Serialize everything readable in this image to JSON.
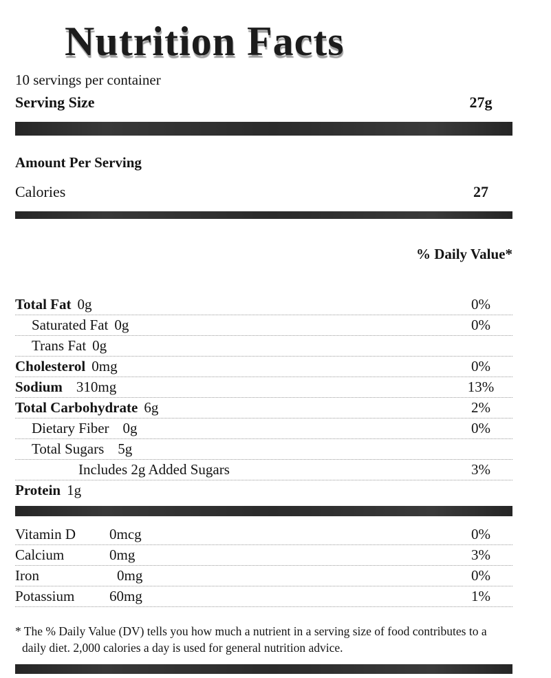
{
  "label": {
    "title": "Nutrition Facts",
    "servings_per_container": "10 servings per container",
    "serving_size": {
      "label": "Serving Size",
      "value": "27g"
    },
    "amount_per_serving": "Amount Per Serving",
    "calories": {
      "label": "Calories",
      "value": "27"
    },
    "daily_value_header": "% Daily Value*",
    "nutrients": [
      {
        "name": "Total Fat",
        "amount": "0g",
        "dv": "0%"
      },
      {
        "name": "Saturated Fat",
        "amount": "0g",
        "dv": "0%"
      },
      {
        "name": "Trans Fat",
        "amount": "0g",
        "dv": ""
      },
      {
        "name": "Cholesterol",
        "amount": "0mg",
        "dv": "0%"
      },
      {
        "name": "Sodium",
        "amount": "310mg",
        "dv": "13%"
      },
      {
        "name": "Total Carbohydrate",
        "amount": "6g",
        "dv": "2%"
      },
      {
        "name": "Dietary Fiber",
        "amount": "0g",
        "dv": "0%"
      },
      {
        "name": "Total Sugars",
        "amount": "5g",
        "dv": ""
      },
      {
        "name": "Includes 2g Added Sugars",
        "amount": "",
        "dv": "3%"
      },
      {
        "name": "Protein",
        "amount": "1g",
        "dv": ""
      }
    ],
    "vitamins": [
      {
        "name": "Vitamin D",
        "amount": "0mcg",
        "dv": "0%"
      },
      {
        "name": "Calcium",
        "amount": "0mg",
        "dv": "3%"
      },
      {
        "name": "Iron",
        "amount": "0mg",
        "dv": "0%"
      },
      {
        "name": "Potassium",
        "amount": "60mg",
        "dv": "1%"
      }
    ],
    "footnote": "* The % Daily Value (DV) tells you how much a nutrient in a serving size of food contributes to a daily diet. 2,000 calories a day is used for general nutrition advice.",
    "colors": {
      "divider_bar": "#2e2e2e",
      "text": "#141414"
    }
  }
}
